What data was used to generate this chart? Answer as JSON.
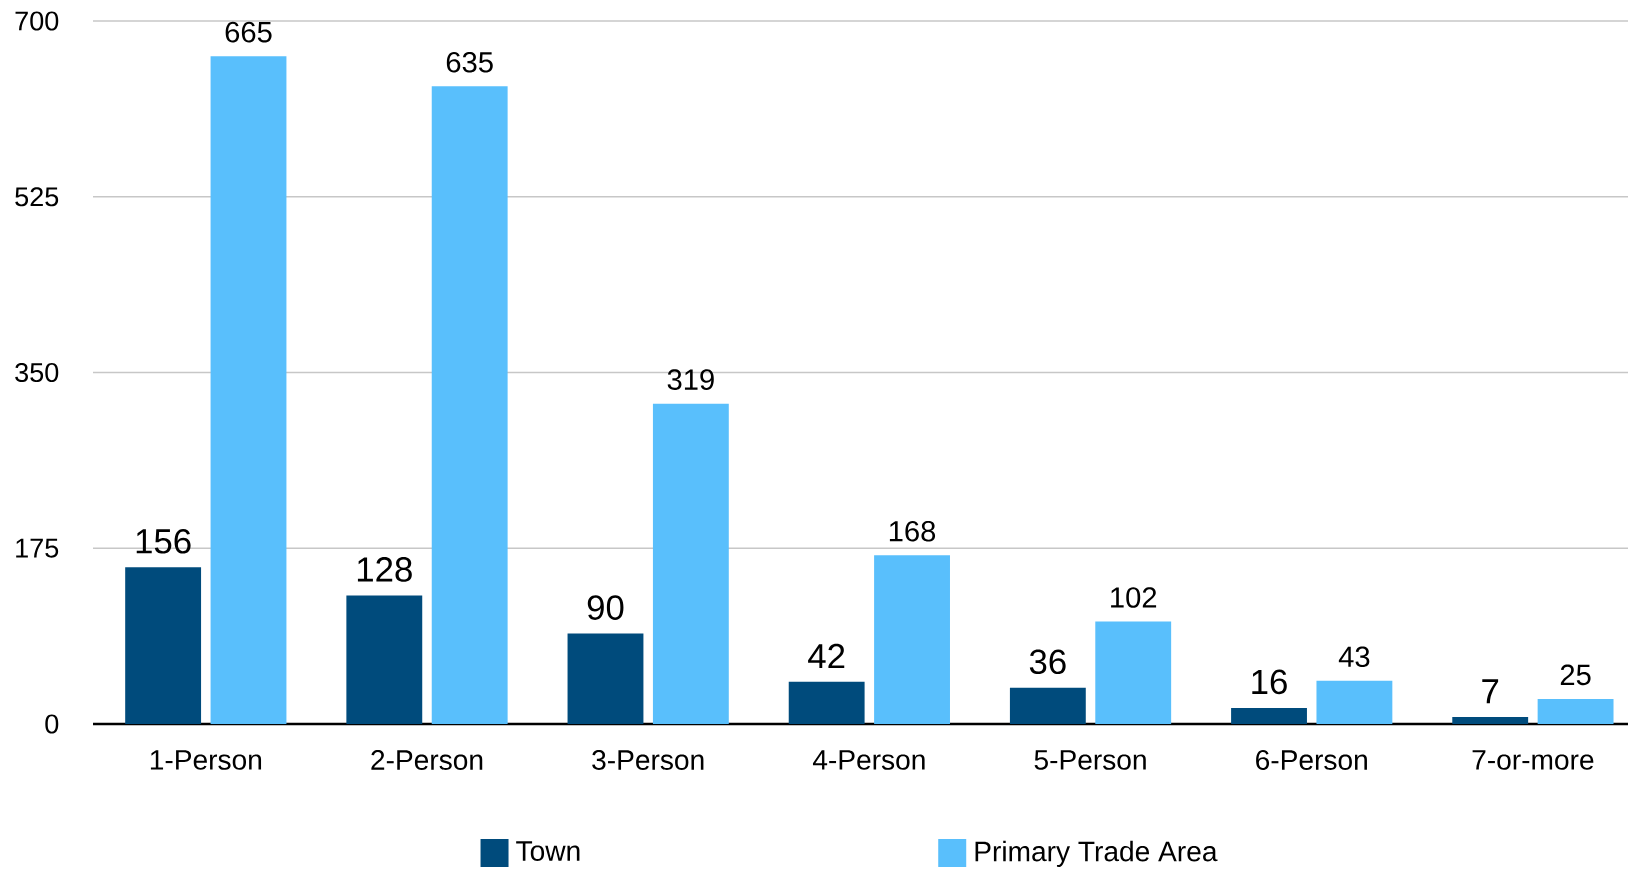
{
  "chart_data": {
    "type": "bar",
    "categories": [
      "1-Person",
      "2-Person",
      "3-Person",
      "4-Person",
      "5-Person",
      "6-Person",
      "7-or-more"
    ],
    "series": [
      {
        "name": "Town",
        "color": "#004b7c",
        "values": [
          156,
          128,
          90,
          42,
          36,
          16,
          7
        ]
      },
      {
        "name": "Primary Trade Area",
        "color": "#59bffc",
        "values": [
          665,
          635,
          319,
          168,
          102,
          43,
          25
        ]
      }
    ],
    "ylim": [
      0,
      700
    ],
    "yticks": [
      0,
      175,
      350,
      525,
      700
    ],
    "grid": "y",
    "legend": "bottom",
    "data_labels": true
  }
}
